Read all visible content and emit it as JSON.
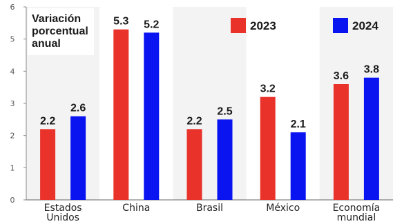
{
  "chart_data": {
    "type": "bar",
    "ylabel": [
      "Variación",
      "porcentual",
      "anual"
    ],
    "categories": [
      [
        "Estados",
        "Unidos"
      ],
      [
        "China"
      ],
      [
        "Brasil"
      ],
      [
        "México"
      ],
      [
        "Economía",
        "mundial"
      ]
    ],
    "series": [
      {
        "name": "2023",
        "color": "#e8322a",
        "values": [
          2.2,
          5.3,
          2.2,
          3.2,
          3.6
        ],
        "labels": [
          "2.2",
          "5.3",
          "2.2",
          "3.2",
          "3.6"
        ]
      },
      {
        "name": "2024",
        "color": "#0a14f0",
        "values": [
          2.6,
          5.2,
          2.5,
          2.1,
          3.8
        ],
        "labels": [
          "2.6",
          "5.2",
          "2.5",
          "2.1",
          "3.8"
        ]
      }
    ],
    "yticks": [
      "0",
      "1",
      "2",
      "3",
      "4",
      "5",
      "6"
    ],
    "ylim": [
      0,
      6
    ],
    "legend_placement": "top-right",
    "grid": false
  }
}
